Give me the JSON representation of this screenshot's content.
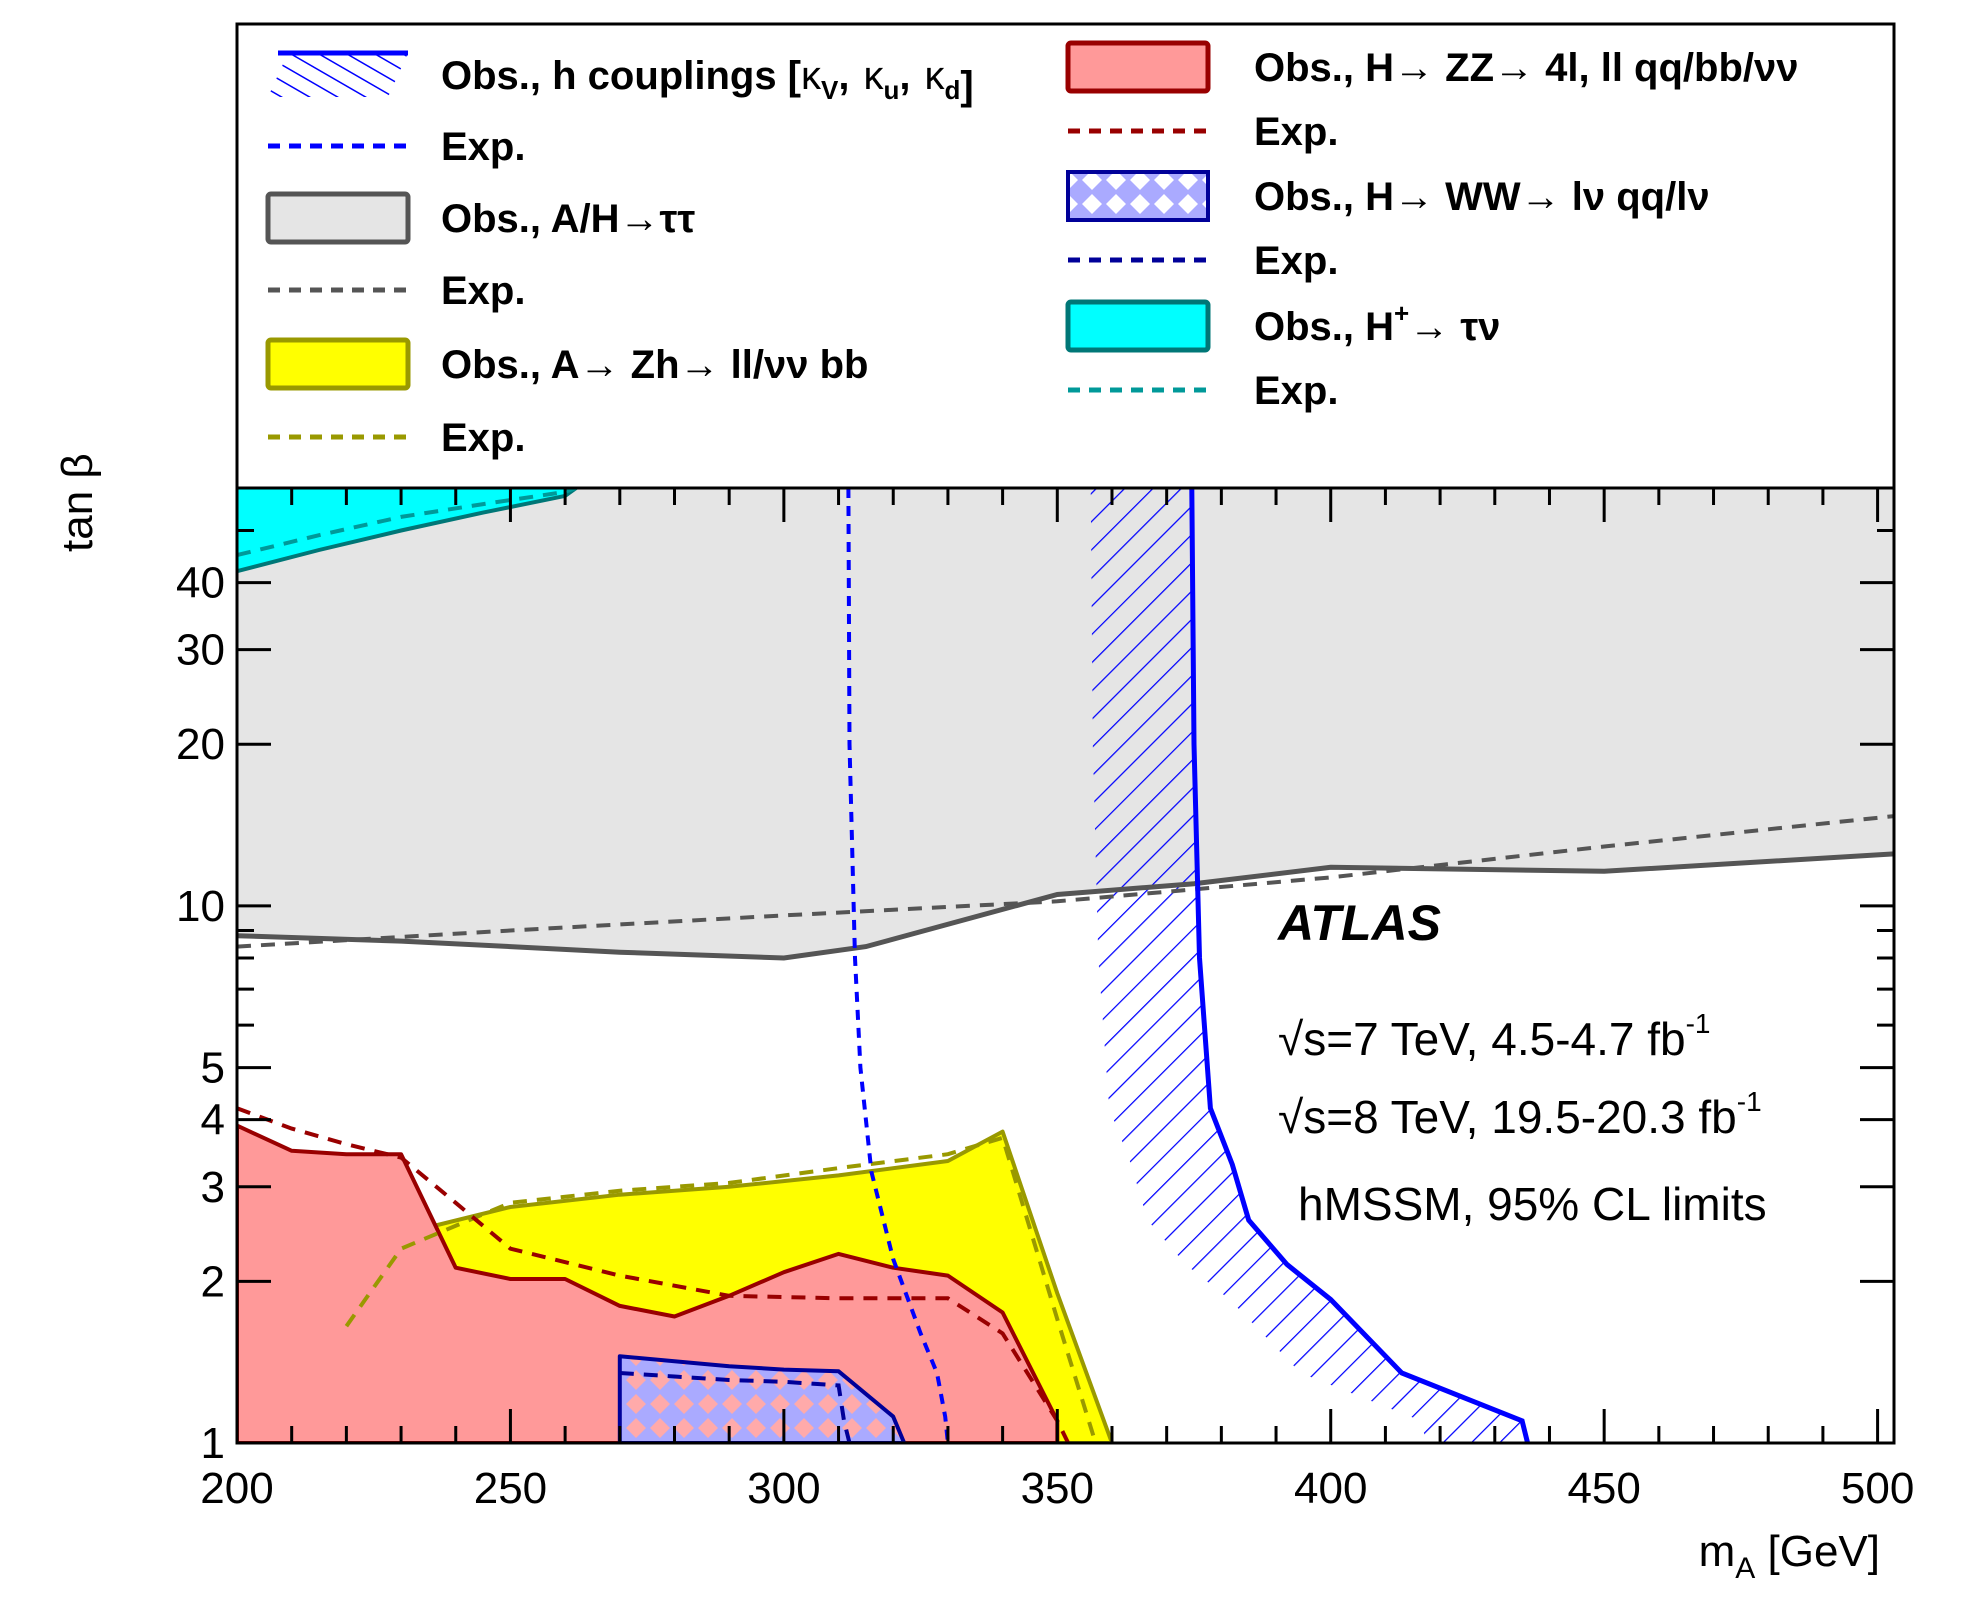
{
  "chart_data": {
    "type": "area",
    "title": "",
    "xlabel": "m_A [GeV]",
    "xlabel_main": "m",
    "xlabel_sub": "A",
    "xlabel_unit": " [GeV]",
    "ylabel": "tan β",
    "xlim": [
      200,
      503
    ],
    "ylim": [
      1,
      60
    ],
    "yscale": "log",
    "x_ticks": [
      200,
      250,
      300,
      350,
      400,
      450,
      500
    ],
    "x_tick_labels": [
      "200",
      "250",
      "300",
      "350",
      "400",
      "450",
      "500"
    ],
    "y_ticks": [
      1,
      2,
      3,
      4,
      5,
      10,
      20,
      30,
      40
    ],
    "y_tick_labels": [
      "1",
      "2",
      "3",
      "4",
      "5",
      "10",
      "20",
      "30",
      "40"
    ],
    "grid": false,
    "legend_placement": "top",
    "annotations": {
      "experiment": "ATLAS",
      "lumi_7": "√s=7 TeV, 4.5-4.7 fb",
      "lumi_8": "√s=8 TeV, 19.5-20.3 fb",
      "lumi_exp": "-1",
      "model": "hMSSM, 95% CL limits"
    },
    "series": [
      {
        "name": "Obs., A/H→ττ",
        "style": "band-above",
        "color": "#555555",
        "fill": "#e5e5e5",
        "x": [
          200,
          230,
          250,
          270,
          300,
          315,
          350,
          375,
          400,
          450,
          503
        ],
        "y": [
          8.8,
          8.6,
          8.4,
          8.2,
          8.0,
          8.4,
          10.5,
          11.0,
          11.8,
          11.6,
          12.5
        ]
      },
      {
        "name": "Exp.",
        "style": "dashed",
        "color": "#555555",
        "x": [
          200,
          250,
          300,
          350,
          400,
          450,
          503
        ],
        "y": [
          8.4,
          9.0,
          9.6,
          10.2,
          11.3,
          12.9,
          14.7
        ]
      },
      {
        "name": "Obs., A→ Zh→ ll/νν bb",
        "style": "band",
        "color": "#999900",
        "fill": "#ffff00",
        "x": [
          220,
          220,
          230,
          250,
          270,
          290,
          310,
          330,
          340,
          350,
          360,
          360
        ],
        "y": [
          1.0,
          1.8,
          2.45,
          2.75,
          2.9,
          3.0,
          3.15,
          3.35,
          3.8,
          1.9,
          1.0,
          1.0
        ]
      },
      {
        "name": "Exp.",
        "style": "dashed",
        "color": "#999900",
        "x": [
          220,
          230,
          250,
          270,
          290,
          310,
          330,
          340,
          350,
          357
        ],
        "y": [
          1.65,
          2.3,
          2.8,
          2.95,
          3.05,
          3.25,
          3.45,
          3.7,
          1.7,
          1.0
        ]
      },
      {
        "name": "Obs., h couplings [κ_V, κ_u, κ_d]",
        "style": "hatched-left",
        "color": "#0000ff",
        "x": [
          374.6,
          375,
          376,
          378,
          382,
          385,
          392,
          400,
          413,
          435,
          436
        ],
        "y": [
          60,
          20,
          8,
          4.2,
          3.3,
          2.6,
          2.15,
          1.85,
          1.35,
          1.1,
          1.0
        ]
      },
      {
        "name": "Exp.",
        "style": "dashed",
        "color": "#0000ff",
        "x": [
          311.8,
          312,
          313,
          314,
          316,
          320,
          325,
          328,
          329.5,
          330
        ],
        "y": [
          60,
          20,
          8,
          5,
          3.2,
          2.2,
          1.6,
          1.35,
          1.12,
          1.0
        ]
      },
      {
        "name": "Obs., H→ ZZ→ 4l, ll qq/bb/νν",
        "style": "band",
        "color": "#990000",
        "fill": "#ff9999",
        "x": [
          200,
          200,
          210,
          220,
          230,
          240,
          250,
          260,
          270,
          280,
          290,
          300,
          310,
          320,
          330,
          340,
          350,
          350
        ],
        "y": [
          1.0,
          3.9,
          3.5,
          3.45,
          3.45,
          2.12,
          2.02,
          2.02,
          1.8,
          1.72,
          1.88,
          2.08,
          2.25,
          2.12,
          2.05,
          1.75,
          1.1,
          1.0
        ]
      },
      {
        "name": "Exp.",
        "style": "dashed",
        "color": "#990000",
        "x": [
          200,
          210,
          220,
          230,
          240,
          250,
          270,
          290,
          310,
          330,
          340,
          350,
          352
        ],
        "y": [
          4.2,
          3.85,
          3.6,
          3.4,
          2.8,
          2.3,
          2.05,
          1.88,
          1.86,
          1.86,
          1.6,
          1.1,
          1.0
        ]
      },
      {
        "name": "Obs., H→ WW→ lν qq/lν",
        "style": "band-checker",
        "color": "#000099",
        "fill": "#aaaaff",
        "x": [
          270,
          270,
          280,
          290,
          300,
          310,
          320,
          322,
          322
        ],
        "y": [
          1.0,
          1.45,
          1.42,
          1.39,
          1.37,
          1.36,
          1.12,
          1.0,
          1.0
        ]
      },
      {
        "name": "Exp.",
        "style": "dashed",
        "color": "#000099",
        "x": [
          270,
          280,
          290,
          300,
          310,
          311,
          312
        ],
        "y": [
          1.35,
          1.33,
          1.31,
          1.3,
          1.28,
          1.1,
          1.0
        ]
      },
      {
        "name": "Obs., H→ τν",
        "style": "band-above",
        "color": "#007777",
        "fill": "#00ffff",
        "x": [
          200,
          215,
          230,
          245,
          260,
          262
        ],
        "y": [
          42,
          46,
          50,
          54,
          58,
          60
        ]
      },
      {
        "name": "Exp.",
        "style": "dashed",
        "color": "#009999",
        "x": [
          200,
          215,
          230,
          245,
          260,
          262
        ],
        "y": [
          45,
          49,
          53,
          56,
          59,
          60
        ]
      }
    ]
  },
  "legend": {
    "left": [
      {
        "label": "Obs., h couplings [",
        "swatch": "hatched",
        "color": "#0000ff",
        "greek": [
          "κ",
          "V",
          "κ",
          "u",
          "κ",
          "d",
          "]"
        ]
      },
      {
        "label": "Exp.",
        "swatch": "dashed",
        "color": "#0000ff"
      },
      {
        "label": "Obs., A/H→ττ",
        "swatch": "box",
        "color": "#555555",
        "fill": "#e5e5e5"
      },
      {
        "label": "Exp.",
        "swatch": "dashed",
        "color": "#555555"
      },
      {
        "label": "Obs., A→ Zh→ ll/νν bb",
        "swatch": "box",
        "color": "#999900",
        "fill": "#ffff00"
      },
      {
        "label": "Exp.",
        "swatch": "dashed",
        "color": "#999900"
      }
    ],
    "right": [
      {
        "label": "Obs., H→ ZZ→ 4l, ll qq/bb/νν",
        "swatch": "box",
        "color": "#990000",
        "fill": "#ff9999"
      },
      {
        "label": "Exp.",
        "swatch": "dashed",
        "color": "#990000"
      },
      {
        "label": "Obs., H→ WW→ lν qq/lν",
        "swatch": "checker",
        "color": "#000099",
        "fill": "#aaaaff"
      },
      {
        "label": "Exp.",
        "swatch": "dashed",
        "color": "#000099"
      },
      {
        "label": "Obs., H",
        "sup": "+",
        "tail": "→ τν",
        "swatch": "box",
        "color": "#007777",
        "fill": "#00ffff"
      },
      {
        "label": "Exp.",
        "swatch": "dashed",
        "color": "#009999"
      }
    ]
  }
}
